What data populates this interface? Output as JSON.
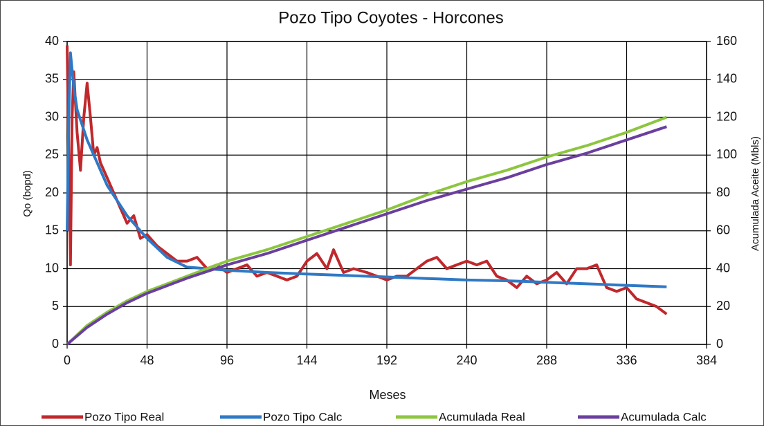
{
  "chart_data": {
    "type": "line",
    "title": "Pozo Tipo Coyotes - Horcones",
    "x_label": "Meses",
    "y_label": "Qo (bopd)",
    "y2_label": "Acumulada Aceite (Mbls)",
    "xlim": [
      0,
      384
    ],
    "xticks": [
      0,
      48,
      96,
      144,
      192,
      240,
      288,
      336,
      384
    ],
    "ylim": [
      0,
      40
    ],
    "yticks": [
      0,
      5,
      10,
      15,
      20,
      25,
      30,
      35,
      40
    ],
    "y2lim": [
      0,
      160
    ],
    "y2ticks": [
      0,
      20,
      40,
      60,
      80,
      100,
      120,
      140,
      160
    ],
    "grid": true,
    "legend": "bottom",
    "series": [
      {
        "name": "Pozo Tipo Real",
        "color": "#c0282c",
        "x": [
          0,
          1,
          2,
          3,
          4,
          6,
          8,
          10,
          12,
          14,
          16,
          18,
          20,
          24,
          28,
          32,
          36,
          40,
          44,
          48,
          54,
          60,
          66,
          72,
          78,
          84,
          90,
          96,
          102,
          108,
          114,
          120,
          126,
          132,
          138,
          144,
          150,
          156,
          160,
          166,
          172,
          180,
          186,
          192,
          198,
          204,
          210,
          216,
          222,
          228,
          234,
          240,
          246,
          252,
          258,
          264,
          270,
          276,
          282,
          288,
          294,
          300,
          306,
          312,
          318,
          324,
          330,
          336,
          342,
          348,
          354,
          360
        ],
        "values": [
          39.5,
          25,
          10.5,
          30,
          36,
          28,
          23,
          30,
          34.5,
          30,
          25,
          26,
          24,
          22,
          20,
          18,
          16,
          17,
          14,
          14.5,
          13,
          12,
          11,
          11,
          11.5,
          10,
          10.5,
          9.5,
          10,
          10.5,
          9,
          9.5,
          9,
          8.5,
          9,
          11,
          12,
          10,
          12.5,
          9.5,
          10,
          9.5,
          9,
          8.5,
          9,
          9,
          10,
          11,
          11.5,
          10,
          10.5,
          11,
          10.5,
          11,
          9,
          8.5,
          7.5,
          9,
          8,
          8.5,
          9.5,
          8,
          10,
          10,
          10.5,
          7.5,
          7,
          7.5,
          6,
          5.5,
          5,
          4
        ]
      },
      {
        "name": "Pozo Tipo Calc",
        "color": "#2e79c6",
        "x": [
          0,
          1,
          2,
          4,
          6,
          12,
          24,
          36,
          48,
          60,
          72,
          84,
          96,
          120,
          144,
          168,
          192,
          216,
          240,
          264,
          288,
          312,
          336,
          360
        ],
        "values": [
          15,
          30,
          38.5,
          34,
          31,
          27,
          21,
          17,
          14,
          11.5,
          10.2,
          10,
          9.8,
          9.5,
          9.3,
          9.1,
          8.9,
          8.7,
          8.5,
          8.4,
          8.2,
          8,
          7.8,
          7.6
        ]
      },
      {
        "name": "Acumulada Real",
        "color": "#8cc63f",
        "axis": "y2",
        "x": [
          0,
          12,
          24,
          36,
          48,
          72,
          96,
          120,
          144,
          168,
          192,
          216,
          240,
          264,
          288,
          312,
          336,
          360
        ],
        "values": [
          0,
          10,
          17,
          23,
          28,
          36,
          44,
          50,
          57,
          64,
          71,
          79,
          86,
          92,
          99,
          105,
          112,
          120
        ]
      },
      {
        "name": "Acumulada Calc",
        "color": "#6a3f9e",
        "axis": "y2",
        "x": [
          0,
          12,
          24,
          36,
          48,
          72,
          96,
          120,
          144,
          168,
          192,
          216,
          240,
          264,
          288,
          312,
          336,
          360
        ],
        "values": [
          0,
          9,
          16,
          22,
          27,
          35,
          42,
          48,
          55,
          62,
          69,
          76,
          82,
          88,
          95,
          101,
          108,
          115
        ]
      }
    ]
  }
}
